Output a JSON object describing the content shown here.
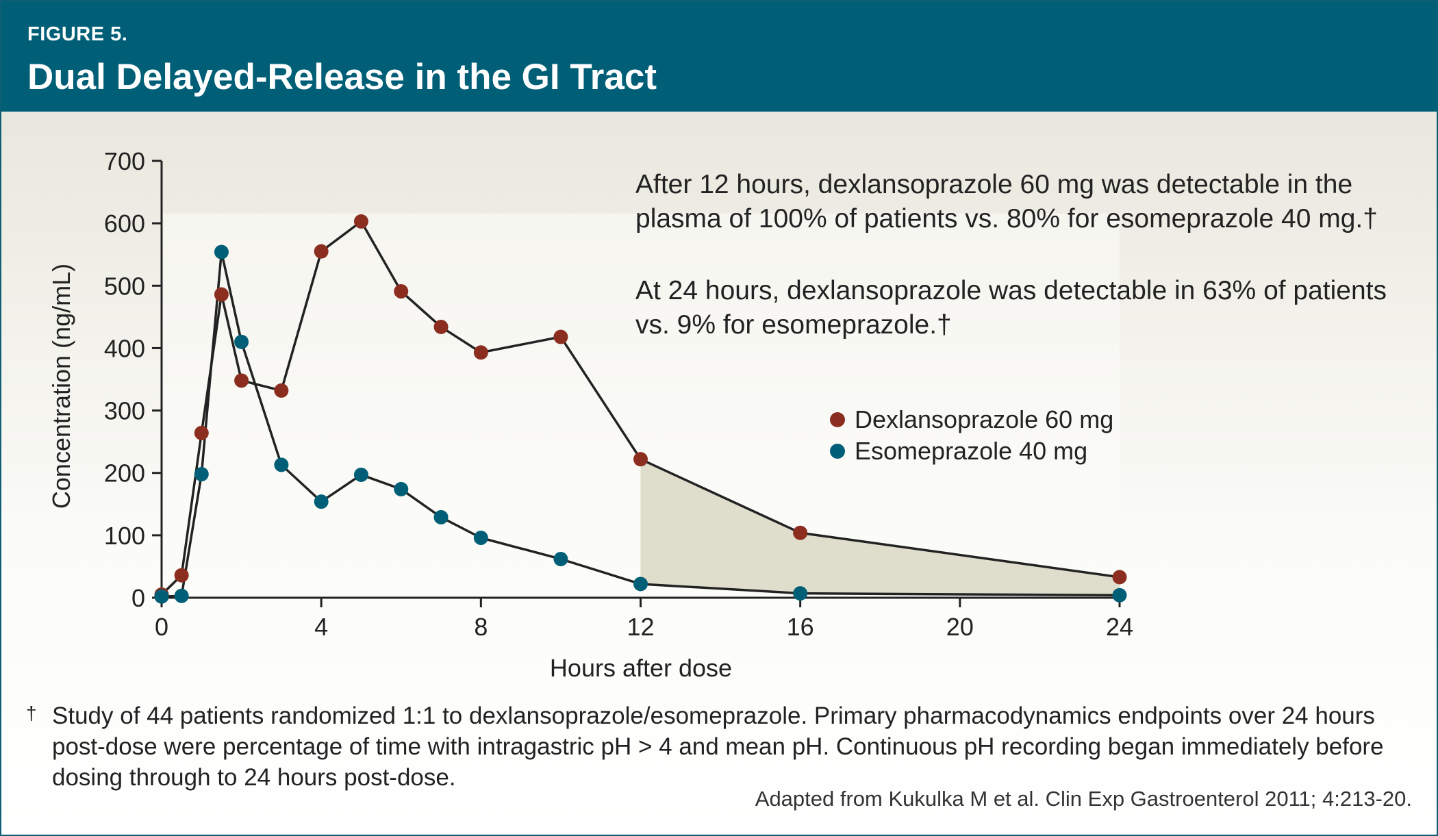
{
  "header": {
    "figure_label": "FIGURE 5.",
    "title": "Dual Delayed-Release in the GI Tract"
  },
  "annotations": {
    "first": "After 12 hours, dexlansoprazole 60 mg was detectable in the plasma of 100% of patients vs. 80% for esomeprazole 40 mg.†",
    "second": "At 24 hours, dexlansoprazole was detectable in 63% of patients vs. 9% for esomeprazole.†"
  },
  "footnote": {
    "mark": "†",
    "text": "Study of 44 patients randomized 1:1 to dexlansoprazole/esomeprazole. Primary pharmacodynamics endpoints over 24 hours post-dose were percentage of time with intragastric pH > 4 and mean pH. Continuous pH recording began immediately before dosing through to 24 hours post-dose."
  },
  "source": "Adapted from Kukulka M et al. Clin Exp Gastroenterol 2011; 4:213-20.",
  "colors": {
    "dexlansoprazole": "#8b2e1f",
    "esomeprazole": "#005f77",
    "shaded_region": "#dfddcc",
    "line": "#222222"
  },
  "chart_data": {
    "type": "line",
    "xlabel": "Hours after dose",
    "ylabel": "Concentration (ng/mL)",
    "xlim": [
      0,
      24
    ],
    "ylim": [
      0,
      700
    ],
    "xticks": [
      0,
      4,
      8,
      12,
      16,
      20,
      24
    ],
    "yticks": [
      0,
      100,
      200,
      300,
      400,
      500,
      600,
      700
    ],
    "legend_position": "middle-right",
    "grid": false,
    "shaded_region_x": [
      12,
      24
    ],
    "series": [
      {
        "name": "Dexlansoprazole 60 mg",
        "color": "#8b2e1f",
        "points": [
          [
            0,
            5
          ],
          [
            0.5,
            36
          ],
          [
            1,
            264
          ],
          [
            1.5,
            486
          ],
          [
            2,
            348
          ],
          [
            3,
            332
          ],
          [
            4,
            555
          ],
          [
            5,
            603
          ],
          [
            6,
            491
          ],
          [
            7,
            434
          ],
          [
            8,
            393
          ],
          [
            10,
            418
          ],
          [
            12,
            222
          ],
          [
            16,
            104
          ],
          [
            24,
            33
          ]
        ]
      },
      {
        "name": "Esomeprazole 40 mg",
        "color": "#005f77",
        "points": [
          [
            0,
            2
          ],
          [
            0.5,
            3
          ],
          [
            1,
            198
          ],
          [
            1.5,
            554
          ],
          [
            2,
            410
          ],
          [
            3,
            213
          ],
          [
            4,
            154
          ],
          [
            5,
            197
          ],
          [
            6,
            174
          ],
          [
            7,
            129
          ],
          [
            8,
            96
          ],
          [
            10,
            62
          ],
          [
            12,
            22
          ],
          [
            16,
            7
          ],
          [
            24,
            4
          ]
        ]
      }
    ]
  }
}
